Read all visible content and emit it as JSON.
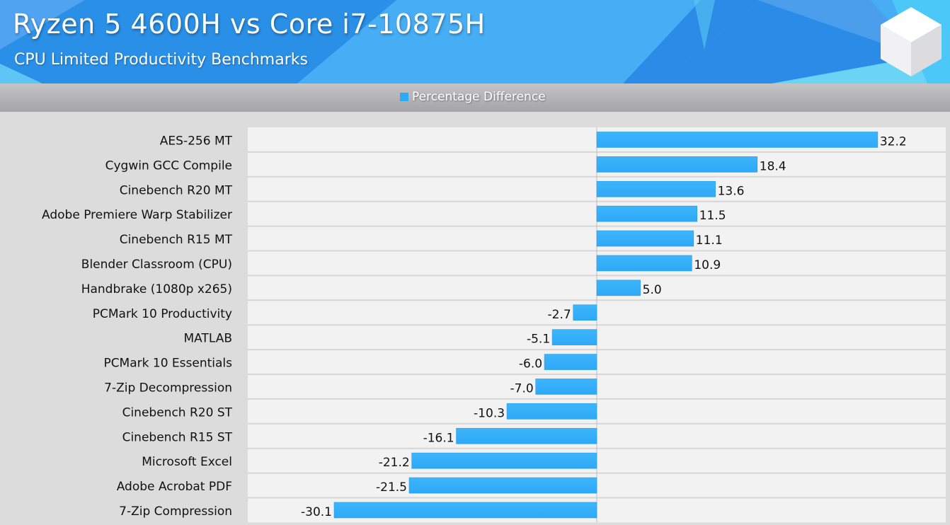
{
  "header": {
    "title": "Ryzen 5 4600H vs Core i7-10875H",
    "subtitle": "CPU Limited Productivity Benchmarks",
    "logo_icon": "white-cube-logo"
  },
  "colors": {
    "bar": "#2ea9f7",
    "header_bg": "#47aef5",
    "plot_bg": "#f2f2f2",
    "page_bg": "#dcdcdd"
  },
  "chart_data": {
    "type": "bar",
    "orientation": "horizontal",
    "title": "Ryzen 5 4600H vs Core i7-10875H",
    "subtitle": "CPU Limited Productivity Benchmarks",
    "xlabel": "",
    "ylabel": "",
    "xlim": [
      -40,
      40
    ],
    "grid": "horizontal row separators",
    "legend": {
      "position": "top-center",
      "entries": [
        "Percentage Difference"
      ]
    },
    "categories": [
      "AES-256 MT",
      "Cygwin GCC Compile",
      "Cinebench R20 MT",
      "Adobe Premiere Warp Stabilizer",
      "Cinebench R15 MT",
      "Blender Classroom (CPU)",
      "Handbrake (1080p x265)",
      "PCMark 10 Productivity",
      "MATLAB",
      "PCMark 10 Essentials",
      "7-Zip Decompression",
      "Cinebench R20 ST",
      "Cinebench R15 ST",
      "Microsoft Excel",
      "Adobe Acrobat PDF",
      "7-Zip Compression"
    ],
    "series": [
      {
        "name": "Percentage Difference",
        "values": [
          32.2,
          18.4,
          13.6,
          11.5,
          11.1,
          10.9,
          5.0,
          -2.7,
          -5.1,
          -6.0,
          -7.0,
          -10.3,
          -16.1,
          -21.2,
          -21.5,
          -30.1
        ],
        "labels": [
          "32.2",
          "18.4",
          "13.6",
          "11.5",
          "11.1",
          "10.9",
          "5.0",
          "-2.7",
          "-5.1",
          "-6.0",
          "-7.0",
          "-10.3",
          "-16.1",
          "-21.2",
          "-21.5",
          "-30.1"
        ]
      }
    ]
  }
}
